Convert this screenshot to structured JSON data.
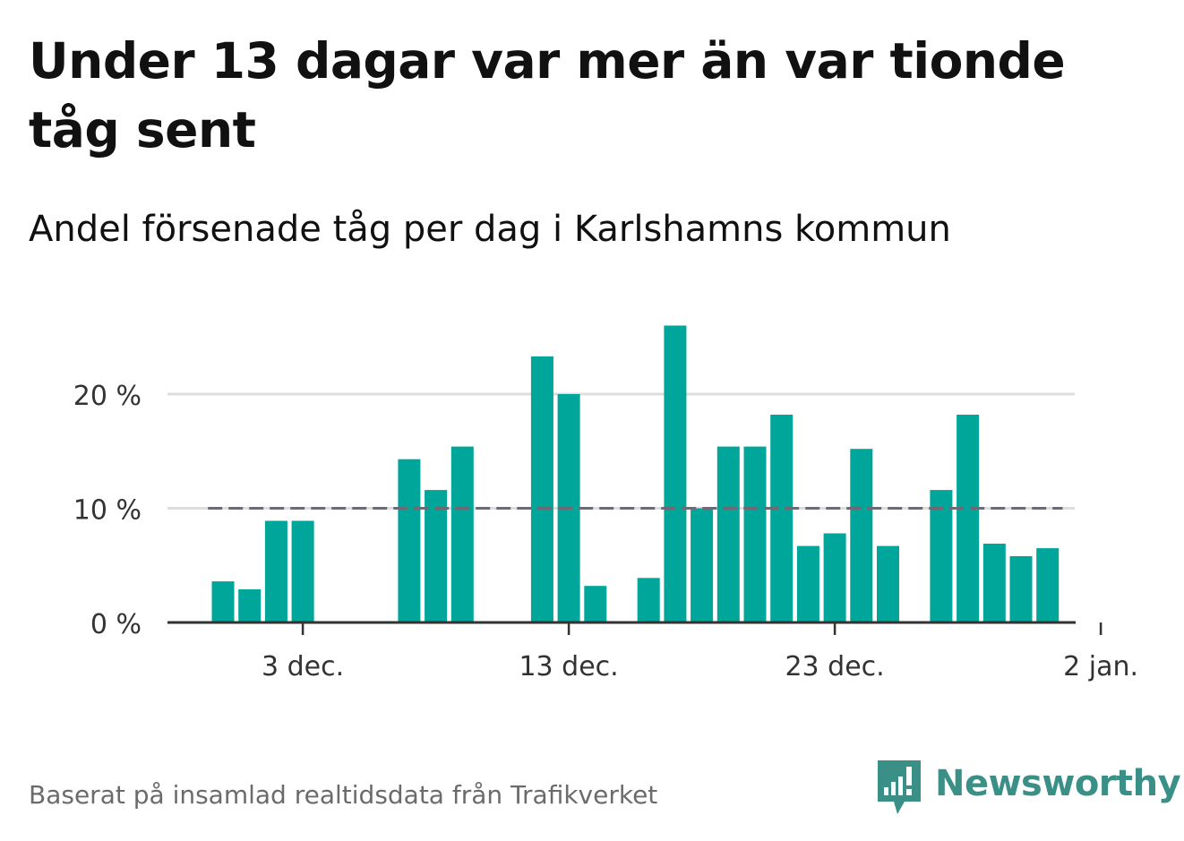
{
  "title": "Under 13 dagar var mer än var tionde tåg sent",
  "subtitle": "Andel försenade tåg per dag i Karlshamns kommun",
  "footer": "Baserat på insamlad realtidsdata från Trafikverket",
  "brand": "Newsworthy",
  "colors": {
    "bar": "#00a69a",
    "threshold": "#6b6b75",
    "grid": "#dddddd",
    "axis": "#333333",
    "brand": "#3a8f86"
  },
  "chart_data": {
    "type": "bar",
    "x_type": "date",
    "x": [
      "2023-11-30",
      "2023-12-01",
      "2023-12-02",
      "2023-12-03",
      "2023-12-04",
      "2023-12-05",
      "2023-12-06",
      "2023-12-07",
      "2023-12-08",
      "2023-12-09",
      "2023-12-10",
      "2023-12-11",
      "2023-12-12",
      "2023-12-13",
      "2023-12-14",
      "2023-12-15",
      "2023-12-16",
      "2023-12-17",
      "2023-12-18",
      "2023-12-19",
      "2023-12-20",
      "2023-12-21",
      "2023-12-22",
      "2023-12-23",
      "2023-12-24",
      "2023-12-25",
      "2023-12-26",
      "2023-12-27",
      "2023-12-28",
      "2023-12-29",
      "2023-12-30",
      "2023-12-31",
      "2024-01-01"
    ],
    "values": [
      3.6,
      2.9,
      8.9,
      8.9,
      null,
      null,
      null,
      14.3,
      11.6,
      15.4,
      null,
      null,
      23.3,
      20.0,
      3.2,
      null,
      3.9,
      26.0,
      10.0,
      15.4,
      15.4,
      18.2,
      6.7,
      7.8,
      15.2,
      6.7,
      null,
      11.6,
      18.2,
      6.9,
      5.8,
      6.5,
      null
    ],
    "threshold": 10,
    "ylim": [
      0,
      27
    ],
    "yticks": [
      0,
      10,
      20
    ],
    "ytick_labels": [
      "0 %",
      "10 %",
      "20 %"
    ],
    "xticks": [
      "2023-12-03",
      "2023-12-13",
      "2023-12-23",
      "2024-01-02"
    ],
    "xtick_labels": [
      "3 dec.",
      "13 dec.",
      "23 dec.",
      "2 jan."
    ],
    "grid": true,
    "legend": "none"
  }
}
